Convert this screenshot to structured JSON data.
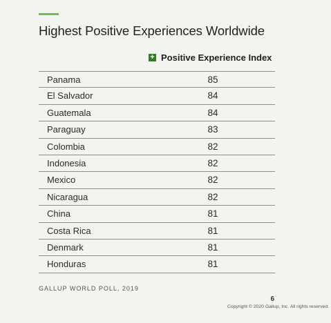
{
  "title": "Highest Positive Experiences Worldwide",
  "legend": {
    "label": "Positive Experience Index",
    "swatch_symbol": "+",
    "color": "#2f7d1e"
  },
  "accent_color": "#6cc04a",
  "rows": [
    {
      "country": "Panama",
      "value": "85"
    },
    {
      "country": "El Salvador",
      "value": "84"
    },
    {
      "country": "Guatemala",
      "value": "84"
    },
    {
      "country": "Paraguay",
      "value": "83"
    },
    {
      "country": "Colombia",
      "value": "82"
    },
    {
      "country": "Indonesia",
      "value": "82"
    },
    {
      "country": "Mexico",
      "value": "82"
    },
    {
      "country": "Nicaragua",
      "value": "82"
    },
    {
      "country": "China",
      "value": "81"
    },
    {
      "country": "Costa Rica",
      "value": "81"
    },
    {
      "country": "Denmark",
      "value": "81"
    },
    {
      "country": "Honduras",
      "value": "81"
    }
  ],
  "source": "GALLUP WORLD POLL, 2019",
  "page_number": "6",
  "copyright": "Copyright © 2020 Gallup, Inc. All rights reserved."
}
